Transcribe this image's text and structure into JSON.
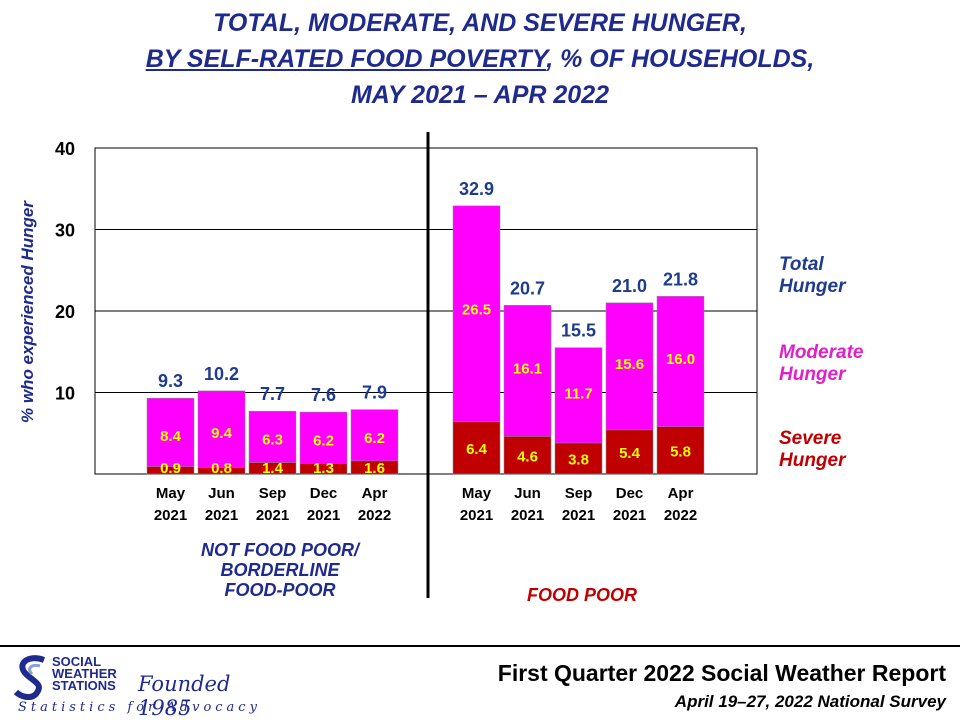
{
  "title": {
    "line1": "TOTAL, MODERATE, AND SEVERE HUNGER,",
    "line2_underlined": "BY SELF-RATED FOOD POVERTY",
    "line2_rest": ", % OF HOUSEHOLDS,",
    "line3": "MAY 2021 – APR 2022"
  },
  "chart_data": {
    "type": "bar",
    "stacked": true,
    "ylabel": "% who experienced Hunger",
    "ylim": [
      0,
      40
    ],
    "yticks": [
      "10",
      "20",
      "30",
      "40"
    ],
    "grid": true,
    "legend": {
      "placement": "right",
      "entries": [
        {
          "name": "Total Hunger",
          "lines": [
            "Total",
            "Hunger"
          ],
          "color": "#1f3c8c"
        },
        {
          "name": "Moderate Hunger",
          "lines": [
            "Moderate",
            "Hunger"
          ],
          "color": "#e020c8"
        },
        {
          "name": "Severe Hunger",
          "lines": [
            "Severe",
            "Hunger"
          ],
          "color": "#c00000"
        }
      ]
    },
    "colors": {
      "moderate": "#ff00ff",
      "severe": "#c00000",
      "total_label": "#1f3c8c",
      "inner_label": "#ffff00"
    },
    "groups": [
      {
        "name": "NOT FOOD POOR/ BORDERLINE FOOD-POOR",
        "name_lines": [
          "NOT FOOD POOR/",
          "BORDERLINE",
          "FOOD-POOR"
        ],
        "name_color": "#1f2a8c",
        "categories": [
          [
            "May",
            "2021"
          ],
          [
            "Jun",
            "2021"
          ],
          [
            "Sep",
            "2021"
          ],
          [
            "Dec",
            "2021"
          ],
          [
            "Apr",
            "2022"
          ]
        ],
        "total": [
          "9.3",
          "10.2",
          "7.7",
          "7.6",
          "7.9"
        ],
        "moderate": [
          "8.4",
          "9.4",
          "6.3",
          "6.2",
          "6.2"
        ],
        "severe": [
          "0.9",
          "0.8",
          "1.4",
          "1.3",
          "1.6"
        ]
      },
      {
        "name": "FOOD POOR",
        "name_lines": [
          "FOOD POOR"
        ],
        "name_color": "#c00000",
        "categories": [
          [
            "May",
            "2021"
          ],
          [
            "Jun",
            "2021"
          ],
          [
            "Sep",
            "2021"
          ],
          [
            "Dec",
            "2021"
          ],
          [
            "Apr",
            "2022"
          ]
        ],
        "total": [
          "32.9",
          "20.7",
          "15.5",
          "21.0",
          "21.8"
        ],
        "moderate": [
          "26.5",
          "16.1",
          "11.7",
          "15.6",
          "16.0"
        ],
        "severe": [
          "6.4",
          "4.6",
          "3.8",
          "5.4",
          "5.8"
        ]
      }
    ]
  },
  "footer": {
    "report": "First Quarter 2022 Social Weather Report",
    "survey": "April 19–27, 2022 National Survey"
  },
  "logo": {
    "name_lines": [
      "SOCIAL",
      "WEATHER",
      "STATIONS"
    ],
    "founded": "Founded 1985",
    "tagline": "Statistics for Advocacy"
  }
}
